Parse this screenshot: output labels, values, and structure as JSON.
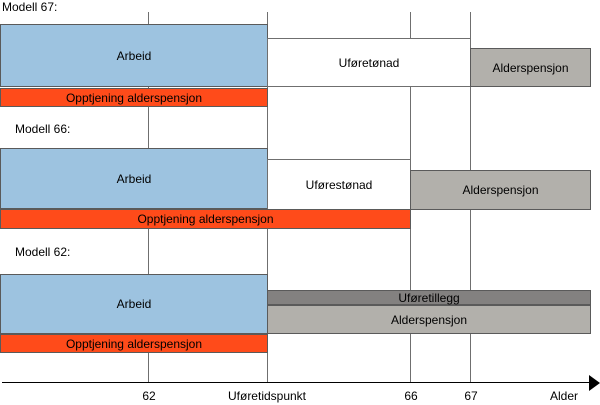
{
  "models": [
    {
      "label": "Modell 67:",
      "arbeid": "Arbeid",
      "opptjening": "Opptjening alderspensjon",
      "ufore": "Uføretønad",
      "alders": "Alderspensjon"
    },
    {
      "label": "Modell 66:",
      "arbeid": "Arbeid",
      "opptjening": "Opptjening alderspensjon",
      "ufore": "Uførestønad",
      "alders": "Alderspensjon"
    },
    {
      "label": "Modell 62:",
      "arbeid": "Arbeid",
      "opptjening": "Opptjening alderspensjon",
      "tillegg": "Uføretillegg",
      "alders": "Alderspensjon"
    }
  ],
  "axis": {
    "ticks": [
      "62",
      "Uføretidspunkt",
      "66",
      "67",
      "Alder"
    ]
  },
  "colors": {
    "arbeid": "#9dc3e0",
    "opptjening": "#ff4b1a",
    "alderspensjon": "#b2b0ab",
    "uforetillegg": "#838180"
  }
}
